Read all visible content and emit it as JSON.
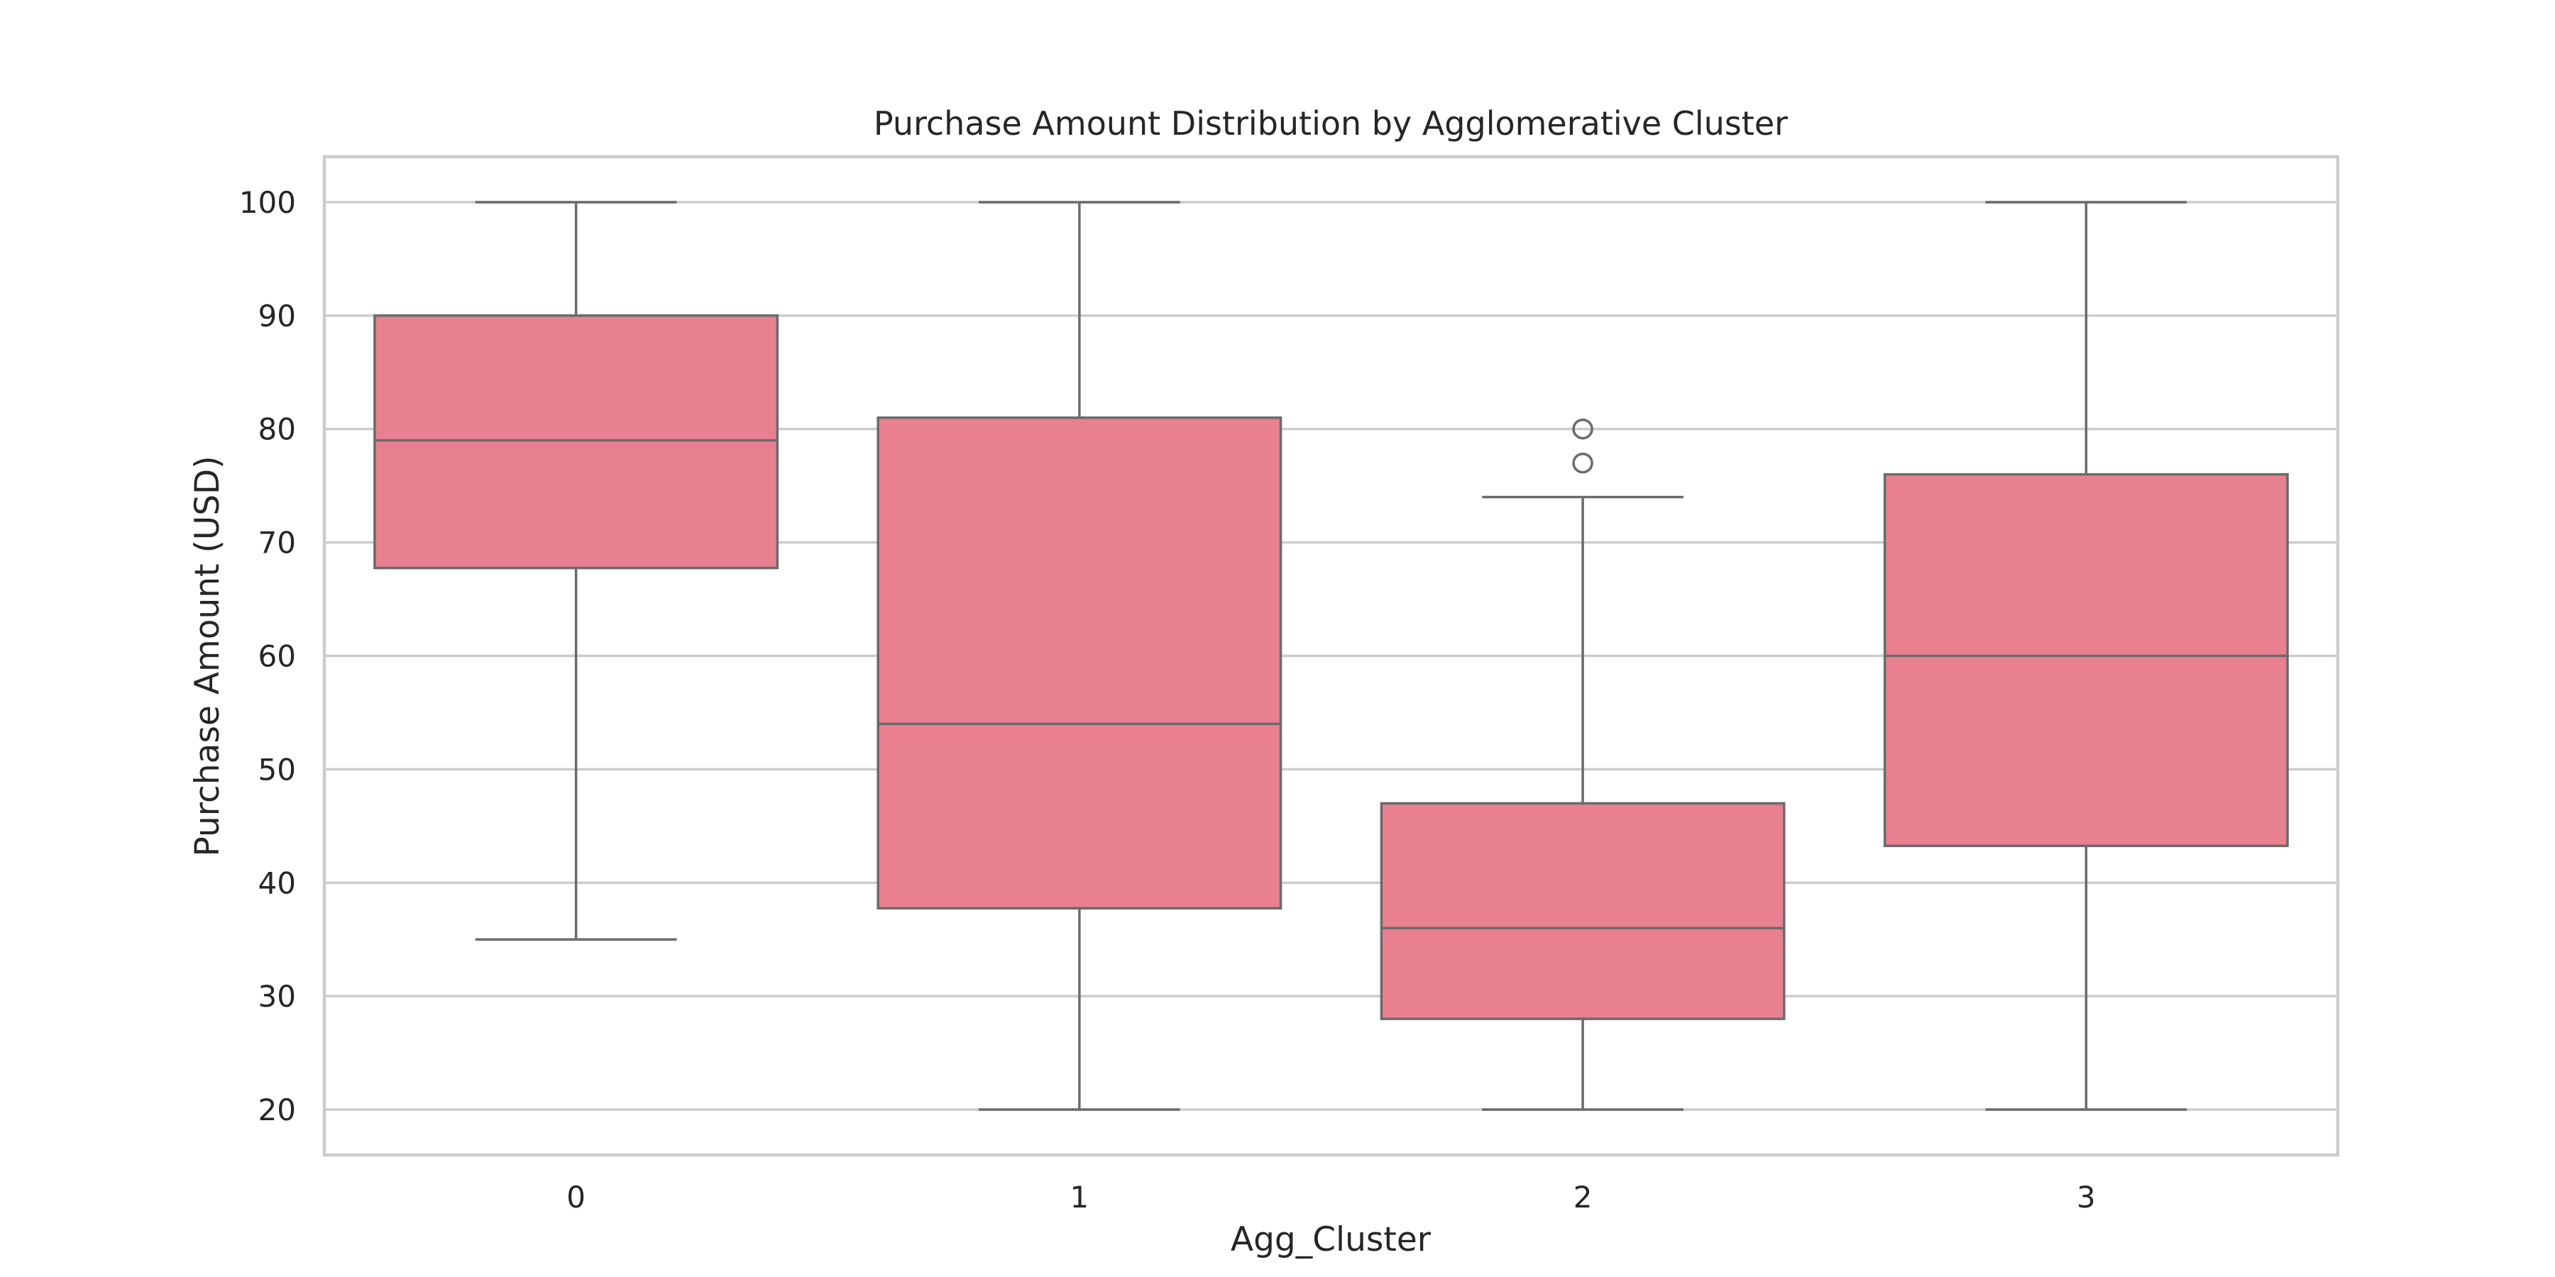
{
  "chart_data": {
    "type": "box",
    "title": "Purchase Amount Distribution by Agglomerative Cluster",
    "xlabel": "Agg_Cluster",
    "ylabel": "Purchase Amount (USD)",
    "ylim": [
      16,
      104
    ],
    "yticks": [
      20,
      30,
      40,
      50,
      60,
      70,
      80,
      90,
      100
    ],
    "grid": true,
    "box_color": "#e8808f",
    "line_color": "#6b6b6b",
    "categories": [
      "0",
      "1",
      "2",
      "3"
    ],
    "boxes": [
      {
        "category": "0",
        "whisker_low": 35,
        "q1": 67.75,
        "median": 79,
        "q3": 90,
        "whisker_high": 100,
        "outliers": []
      },
      {
        "category": "1",
        "whisker_low": 20,
        "q1": 37.75,
        "median": 54,
        "q3": 81,
        "whisker_high": 100,
        "outliers": []
      },
      {
        "category": "2",
        "whisker_low": 20,
        "q1": 28,
        "median": 36,
        "q3": 47,
        "whisker_high": 74,
        "outliers": [
          77,
          80
        ]
      },
      {
        "category": "3",
        "whisker_low": 20,
        "q1": 43.25,
        "median": 60,
        "q3": 76,
        "whisker_high": 100,
        "outliers": []
      }
    ]
  }
}
